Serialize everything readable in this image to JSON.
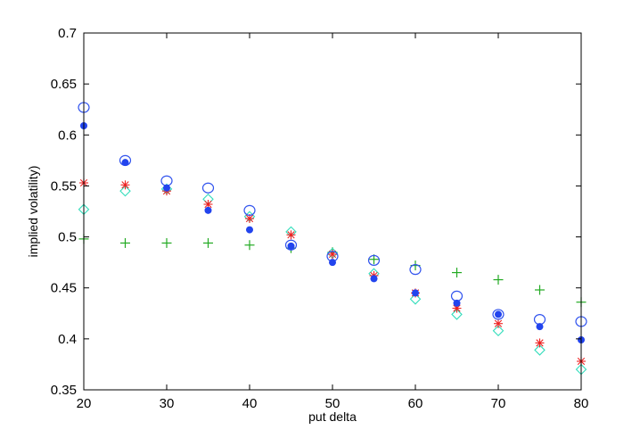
{
  "chart_data": {
    "type": "scatter",
    "title": "",
    "xlabel": "put delta",
    "ylabel": "implied volatility)",
    "xlim": [
      20,
      80
    ],
    "ylim": [
      0.35,
      0.7
    ],
    "xticks": [
      20,
      30,
      40,
      50,
      60,
      70,
      80
    ],
    "xtick_labels": [
      "20",
      "30",
      "40",
      "50",
      "60",
      "70",
      "80"
    ],
    "yticks": [
      0.35,
      0.4,
      0.45,
      0.5,
      0.55,
      0.6,
      0.65,
      0.7
    ],
    "ytick_labels": [
      "0.35",
      "0.4",
      "0.45",
      "0.5",
      "0.55",
      "0.6",
      "0.65",
      "0.7"
    ],
    "grid": false,
    "legend": false,
    "x": [
      20,
      25,
      30,
      35,
      40,
      45,
      50,
      55,
      60,
      65,
      70,
      75,
      80
    ],
    "series": [
      {
        "marker": "open-circle",
        "color": "#3355ee",
        "values": [
          0.627,
          0.575,
          0.555,
          0.548,
          0.526,
          0.492,
          0.481,
          0.477,
          0.468,
          0.442,
          0.424,
          0.419,
          0.417
        ]
      },
      {
        "marker": "filled-circle",
        "color": "#2244ee",
        "values": [
          0.609,
          0.573,
          0.548,
          0.526,
          0.507,
          0.491,
          0.475,
          0.459,
          0.445,
          0.435,
          0.424,
          0.412,
          0.399
        ]
      },
      {
        "marker": "asterisk",
        "color": "#ee2222",
        "values": [
          0.553,
          0.551,
          0.545,
          0.532,
          0.518,
          0.502,
          0.483,
          0.462,
          0.445,
          0.43,
          0.415,
          0.396,
          0.378
        ]
      },
      {
        "marker": "diamond",
        "color": "#33ddbb",
        "values": [
          0.527,
          0.545,
          0.547,
          0.537,
          0.52,
          0.505,
          0.484,
          0.464,
          0.439,
          0.424,
          0.408,
          0.389,
          0.37
        ]
      },
      {
        "marker": "plus",
        "color": "#22aa22",
        "values": [
          0.498,
          0.494,
          0.494,
          0.494,
          0.492,
          0.489,
          0.485,
          0.478,
          0.472,
          0.465,
          0.458,
          0.448,
          0.436
        ]
      }
    ]
  }
}
